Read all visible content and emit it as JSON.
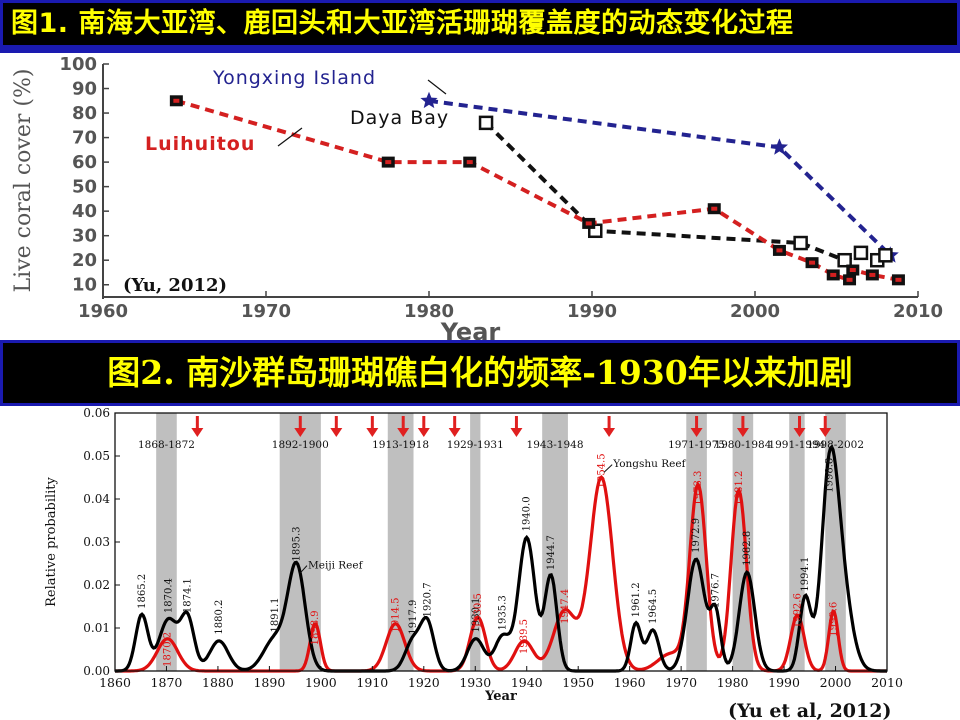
{
  "banners": {
    "fig1_title": "图1.  南海大亚湾、鹿回头和大亚湾活珊瑚覆盖度的动态变化过程",
    "fig2_title": "图2. 南沙群岛珊瑚礁白化的频率-1930年以来加剧"
  },
  "colors": {
    "banner_bg": "#000000",
    "banner_text": "#ffff00",
    "banner_border": "#1a1ab0",
    "yongxing": "#232390",
    "daya": "#111111",
    "luihuitou": "#d42020",
    "band": "#bfbfbf",
    "arrow": "#e02020"
  },
  "chart_data": [
    {
      "type": "line",
      "xlabel": "Year",
      "ylabel": "Live coral cover (%)",
      "xlim": [
        1960,
        2010
      ],
      "ylim": [
        5,
        100
      ],
      "x_ticks": [
        "1960",
        "1970",
        "1980",
        "1990",
        "2000",
        "2010"
      ],
      "y_ticks": [
        "10",
        "20",
        "30",
        "40",
        "50",
        "60",
        "70",
        "80",
        "90",
        "100"
      ],
      "citation": "(Yu, 2012)",
      "series": [
        {
          "name": "Yongxing Island",
          "marker": "star",
          "points": [
            [
              1980,
              85
            ],
            [
              2001.5,
              66
            ],
            [
              2008.3,
              22
            ]
          ]
        },
        {
          "name": "Daya Bay",
          "marker": "open-square",
          "points": [
            [
              1983.5,
              76
            ],
            [
              1990.2,
              32
            ],
            [
              2002.8,
              27
            ],
            [
              2005.5,
              20
            ],
            [
              2006.5,
              23
            ],
            [
              2007.5,
              20
            ],
            [
              2008,
              22
            ]
          ]
        },
        {
          "name": "Luihuitou",
          "marker": "filled-square",
          "points": [
            [
              1964.5,
              85
            ],
            [
              1977.5,
              60
            ],
            [
              1982.5,
              60
            ],
            [
              1989.8,
              35
            ],
            [
              1997.5,
              41
            ],
            [
              2001.5,
              24
            ],
            [
              2003.5,
              19
            ],
            [
              2004.8,
              14
            ],
            [
              2005.8,
              12
            ],
            [
              2006,
              16
            ],
            [
              2007.2,
              14
            ],
            [
              2008.8,
              12
            ]
          ]
        }
      ]
    },
    {
      "type": "area",
      "xlabel": "Year",
      "ylabel": "Relative probability",
      "xlim": [
        1860,
        2010
      ],
      "ylim": [
        0,
        0.06
      ],
      "x_ticks": [
        "1860",
        "1870",
        "1880",
        "1890",
        "1900",
        "1910",
        "1920",
        "1930",
        "1940",
        "1950",
        "1960",
        "1970",
        "1980",
        "1990",
        "2000",
        "2010"
      ],
      "y_ticks": [
        "0.00",
        "0.01",
        "0.02",
        "0.03",
        "0.04",
        "0.05",
        "0.06"
      ],
      "citation": "(Yu et al, 2012)",
      "bands": [
        {
          "label": "1868-1872",
          "start": 1868,
          "end": 1872
        },
        {
          "label": "1892-1900",
          "start": 1892,
          "end": 1900
        },
        {
          "label": "1913-1918",
          "start": 1913,
          "end": 1918
        },
        {
          "label": "1929-1931",
          "start": 1929,
          "end": 1931
        },
        {
          "label": "1943-1948",
          "start": 1943,
          "end": 1948
        },
        {
          "label": "1971-1975",
          "start": 1971,
          "end": 1975
        },
        {
          "label": "1980-1984",
          "start": 1980,
          "end": 1984
        },
        {
          "label": "1991-1994",
          "start": 1991,
          "end": 1994
        },
        {
          "label": "1998-2002",
          "start": 1998,
          "end": 2002
        }
      ],
      "arrows": [
        1876,
        1896,
        1903,
        1910,
        1916,
        1920,
        1926,
        1938,
        1956,
        1973,
        1982,
        1993,
        1998
      ],
      "reef_labels": [
        "Meiji Reef",
        "Yongshu Reef"
      ],
      "series": [
        {
          "name": "Meiji Reef",
          "peaks": [
            [
              1865.2,
              0.013,
              1.2
            ],
            [
              1870.4,
              0.012,
              1.8
            ],
            [
              1874.1,
              0.012,
              1.3
            ],
            [
              1880.2,
              0.007,
              1.8
            ],
            [
              1891.1,
              0.0075,
              2.2
            ],
            [
              1895.3,
              0.024,
              1.7
            ],
            [
              1917.9,
              0.007,
              1.5
            ],
            [
              1920.7,
              0.011,
              1.3
            ],
            [
              1930.1,
              0.0075,
              1.6
            ],
            [
              1935.3,
              0.008,
              1.5
            ],
            [
              1940,
              0.031,
              1.6
            ],
            [
              1944.7,
              0.022,
              1.2
            ],
            [
              1961.2,
              0.011,
              1.0
            ],
            [
              1964.5,
              0.0095,
              1.2
            ],
            [
              1972.9,
              0.026,
              1.7
            ],
            [
              1976.7,
              0.013,
              1.0
            ],
            [
              1982.8,
              0.023,
              1.5
            ],
            [
              1994.1,
              0.017,
              1.1
            ],
            [
              1998.8,
              0.04,
              1.6
            ],
            [
              2001,
              0.02,
              2.0
            ]
          ],
          "labels": [
            [
              "1865.2",
              1865.2,
              0.014
            ],
            [
              "1870.4",
              1870.4,
              0.013
            ],
            [
              "1874.1",
              1874.1,
              0.013
            ],
            [
              "1880.2",
              1880.2,
              0.008
            ],
            [
              "1891.1",
              1891.1,
              0.0085
            ],
            [
              "1895.3",
              1895.3,
              0.025
            ],
            [
              "1917.9",
              1917.9,
              0.008
            ],
            [
              "1920.7",
              1920.7,
              0.012
            ],
            [
              "1930.1",
              1930.1,
              0.0085
            ],
            [
              "1935.3",
              1935.3,
              0.009
            ],
            [
              "1940.0",
              1940,
              0.032
            ],
            [
              "1944.7",
              1944.7,
              0.023
            ],
            [
              "1961.2",
              1961.2,
              0.012
            ],
            [
              "1964.5",
              1964.5,
              0.0105
            ],
            [
              "1972.9",
              1972.9,
              0.027
            ],
            [
              "1976.7",
              1976.7,
              0.0142
            ],
            [
              "1982.8",
              1982.8,
              0.024
            ],
            [
              "1994.1",
              1994.1,
              0.018
            ],
            [
              "1998.8",
              1998.8,
              0.041
            ]
          ]
        },
        {
          "name": "Yongshu Reef",
          "peaks": [
            [
              1870.2,
              0.0075,
              2.0
            ],
            [
              1898.9,
              0.011,
              1.0
            ],
            [
              1914.5,
              0.011,
              1.8
            ],
            [
              1930.5,
              0.0125,
              1.5
            ],
            [
              1939.5,
              0.007,
              1.8
            ],
            [
              1947.4,
              0.014,
              2.2
            ],
            [
              1954.5,
              0.045,
              2.2
            ],
            [
              1973.3,
              0.043,
              1.6
            ],
            [
              1981.2,
              0.042,
              1.5
            ],
            [
              1992.6,
              0.013,
              1.3
            ],
            [
              1999.6,
              0.014,
              0.9
            ],
            [
              1968,
              0.004,
              2.5
            ]
          ],
          "labels": [
            [
              "1870.2",
              1870.2,
              0.0005
            ],
            [
              "1898.9",
              1898.9,
              0.0055
            ],
            [
              "1914.5",
              1914.5,
              0.0085
            ],
            [
              "1930.5",
              1930.5,
              0.0095
            ],
            [
              "1939.5",
              1939.5,
              0.0035
            ],
            [
              "1947.4",
              1947.4,
              0.0105
            ],
            [
              "1954.5",
              1954.5,
              0.042
            ],
            [
              "1973.3",
              1973.3,
              0.038
            ],
            [
              "1981.2",
              1981.2,
              0.038
            ],
            [
              "1992.6",
              1992.6,
              0.0095
            ],
            [
              "1999.6",
              1999.6,
              0.0075
            ]
          ]
        }
      ]
    }
  ]
}
